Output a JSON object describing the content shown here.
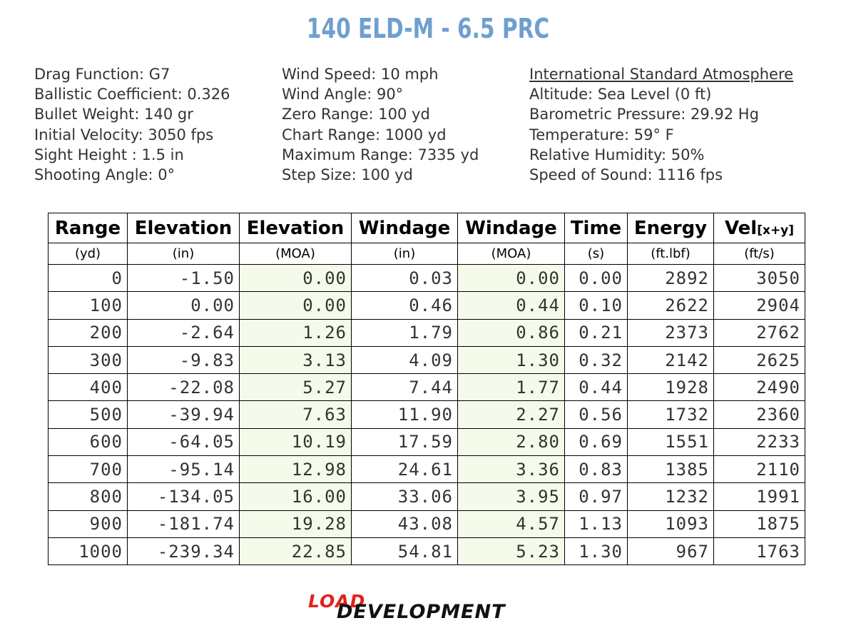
{
  "title": "140 ELD-M - 6.5 PRC",
  "colors": {
    "title": "#6f9fd0",
    "moa_cell_bg": "#f5fbea",
    "logo_red": "#e2211c",
    "logo_black": "#111111"
  },
  "info": {
    "col1": [
      "Drag Function: G7",
      "Ballistic Coefficient: 0.326",
      "Bullet Weight: 140 gr",
      "Initial Velocity: 3050 fps",
      "Sight Height : 1.5 in",
      "Shooting Angle: 0°"
    ],
    "col2": [
      "Wind Speed: 10 mph",
      "Wind Angle: 90°",
      "Zero Range: 100 yd",
      "Chart Range: 1000 yd",
      "Maximum Range: 7335 yd",
      "Step Size: 100 yd"
    ],
    "col3_heading": "International Standard Atmosphere",
    "col3": [
      "Altitude: Sea Level (0 ft)",
      "Barometric Pressure: 29.92 Hg",
      "Temperature: 59° F",
      "Relative Humidity: 50%",
      "Speed of Sound: 1116 fps"
    ]
  },
  "table": {
    "headers": [
      "Range",
      "Elevation",
      "Elevation",
      "Windage",
      "Windage",
      "Time",
      "Energy",
      "Vel"
    ],
    "vel_subscript": "[x+y]",
    "units": [
      "(yd)",
      "(in)",
      "(MOA)",
      "(in)",
      "(MOA)",
      "(s)",
      "(ft.lbf)",
      "(ft/s)"
    ],
    "rows": [
      [
        "0",
        "-1.50",
        "0.00",
        "0.03",
        "0.00",
        "0.00",
        "2892",
        "3050"
      ],
      [
        "100",
        "0.00",
        "0.00",
        "0.46",
        "0.44",
        "0.10",
        "2622",
        "2904"
      ],
      [
        "200",
        "-2.64",
        "1.26",
        "1.79",
        "0.86",
        "0.21",
        "2373",
        "2762"
      ],
      [
        "300",
        "-9.83",
        "3.13",
        "4.09",
        "1.30",
        "0.32",
        "2142",
        "2625"
      ],
      [
        "400",
        "-22.08",
        "5.27",
        "7.44",
        "1.77",
        "0.44",
        "1928",
        "2490"
      ],
      [
        "500",
        "-39.94",
        "7.63",
        "11.90",
        "2.27",
        "0.56",
        "1732",
        "2360"
      ],
      [
        "600",
        "-64.05",
        "10.19",
        "17.59",
        "2.80",
        "0.69",
        "1551",
        "2233"
      ],
      [
        "700",
        "-95.14",
        "12.98",
        "24.61",
        "3.36",
        "0.83",
        "1385",
        "2110"
      ],
      [
        "800",
        "-134.05",
        "16.00",
        "33.06",
        "3.95",
        "0.97",
        "1232",
        "1991"
      ],
      [
        "900",
        "-181.74",
        "19.28",
        "43.08",
        "4.57",
        "1.13",
        "1093",
        "1875"
      ],
      [
        "1000",
        "-239.34",
        "22.85",
        "54.81",
        "5.23",
        "1.30",
        "967",
        "1763"
      ]
    ]
  },
  "logo": {
    "word1": "LOAD",
    "word2": "DEVELOPMENT"
  }
}
